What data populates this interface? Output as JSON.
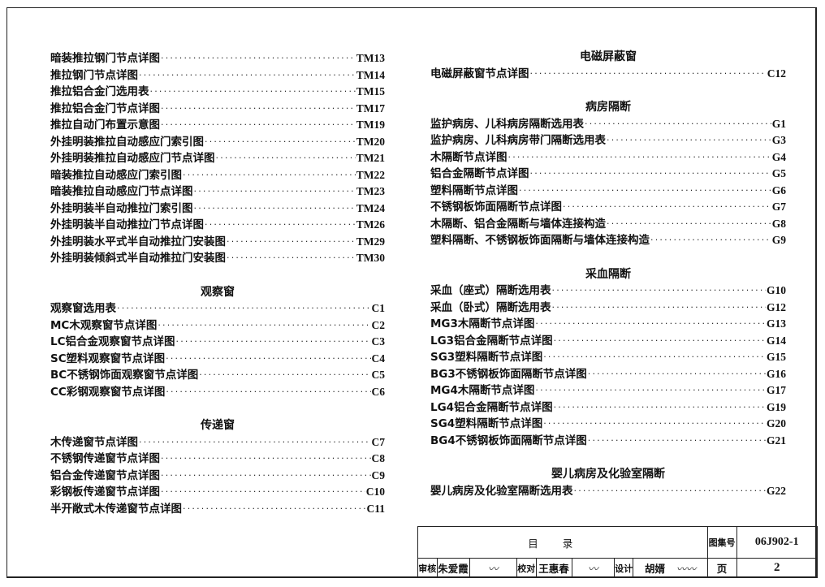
{
  "left_sections": [
    {
      "heading": "",
      "items": [
        {
          "title": "暗装推拉钢门节点详图",
          "page": "TM13"
        },
        {
          "title": "推拉钢门节点详图",
          "page": "TM14"
        },
        {
          "title": "推拉铝合金门选用表",
          "page": "TM15"
        },
        {
          "title": "推拉铝合金门节点详图",
          "page": "TM17"
        },
        {
          "title": "推拉自动门布置示意图",
          "page": "TM19"
        },
        {
          "title": "外挂明装推拉自动感应门索引图",
          "page": "TM20"
        },
        {
          "title": "外挂明装推拉自动感应门节点详图",
          "page": "TM21"
        },
        {
          "title": "暗装推拉自动感应门索引图",
          "page": "TM22"
        },
        {
          "title": "暗装推拉自动感应门节点详图",
          "page": "TM23"
        },
        {
          "title": "外挂明装半自动推拉门索引图",
          "page": "TM24"
        },
        {
          "title": "外挂明装半自动推拉门节点详图",
          "page": "TM26"
        },
        {
          "title": "外挂明装水平式半自动推拉门安装图",
          "page": "TM29"
        },
        {
          "title": "外挂明装倾斜式半自动推拉门安装图",
          "page": "TM30"
        }
      ]
    },
    {
      "heading": "观察窗",
      "items": [
        {
          "title": "观察窗选用表",
          "page": "C1"
        },
        {
          "title": "MC木观察窗节点详图",
          "page": "C2"
        },
        {
          "title": "LC铝合金观察窗节点详图",
          "page": "C3"
        },
        {
          "title": "SC塑料观察窗节点详图",
          "page": "C4"
        },
        {
          "title": "BC不锈钢饰面观察窗节点详图",
          "page": "C5"
        },
        {
          "title": "CC彩钢观察窗节点详图",
          "page": "C6"
        }
      ]
    },
    {
      "heading": "传递窗",
      "items": [
        {
          "title": "木传递窗节点详图",
          "page": "C7"
        },
        {
          "title": "不锈钢传递窗节点详图",
          "page": "C8"
        },
        {
          "title": "铝合金传递窗节点详图",
          "page": "C9"
        },
        {
          "title": "彩钢板传递窗节点详图",
          "page": "C10"
        },
        {
          "title": "半开敞式木传递窗节点详图",
          "page": "C11"
        }
      ]
    }
  ],
  "right_sections": [
    {
      "heading": "电磁屏蔽窗",
      "items": [
        {
          "title": "电磁屏蔽窗节点详图",
          "page": "C12"
        }
      ]
    },
    {
      "heading": "病房隔断",
      "items": [
        {
          "title": "监护病房、儿科病房隔断选用表",
          "page": "G1"
        },
        {
          "title": "监护病房、儿科病房带门隔断选用表",
          "page": "G3"
        },
        {
          "title": "木隔断节点详图",
          "page": "G4"
        },
        {
          "title": "铝合金隔断节点详图",
          "page": "G5"
        },
        {
          "title": "塑料隔断节点详图",
          "page": "G6"
        },
        {
          "title": "不锈钢板饰面隔断节点详图",
          "page": "G7"
        },
        {
          "title": "木隔断、铝合金隔断与墙体连接构造",
          "page": "G8"
        },
        {
          "title": "塑料隔断、不锈钢板饰面隔断与墙体连接构造",
          "page": "G9"
        }
      ]
    },
    {
      "heading": "采血隔断",
      "items": [
        {
          "title": "采血（座式）隔断选用表",
          "page": "G10"
        },
        {
          "title": "采血（卧式）隔断选用表",
          "page": "G12"
        },
        {
          "title": "MG3木隔断节点详图",
          "page": "G13"
        },
        {
          "title": "LG3铝合金隔断节点详图",
          "page": "G14"
        },
        {
          "title": "SG3塑料隔断节点详图",
          "page": "G15"
        },
        {
          "title": "BG3不锈钢板饰面隔断节点详图",
          "page": "G16"
        },
        {
          "title": "MG4木隔断节点详图",
          "page": "G17"
        },
        {
          "title": "LG4铝合金隔断节点详图",
          "page": "G19"
        },
        {
          "title": "SG4塑料隔断节点详图",
          "page": "G20"
        },
        {
          "title": "BG4不锈钢板饰面隔断节点详图",
          "page": "G21"
        }
      ]
    },
    {
      "heading": "婴儿病房及化验室隔断",
      "items": [
        {
          "title": "婴儿病房及化验室隔断选用表",
          "page": "G22"
        }
      ]
    }
  ],
  "title_block": {
    "title": "目录",
    "atlas_label": "图集号",
    "atlas_no": "06J902-1",
    "review_label": "审核",
    "reviewer": "朱爱霞",
    "review_signature": "朱爱霞",
    "check_label": "校对",
    "checker": "王惠春",
    "check_signature": "王惠春",
    "design_label": "设计",
    "designer": "胡婿",
    "design_signature": "胡婿",
    "page_label": "页",
    "page_no": "2"
  }
}
